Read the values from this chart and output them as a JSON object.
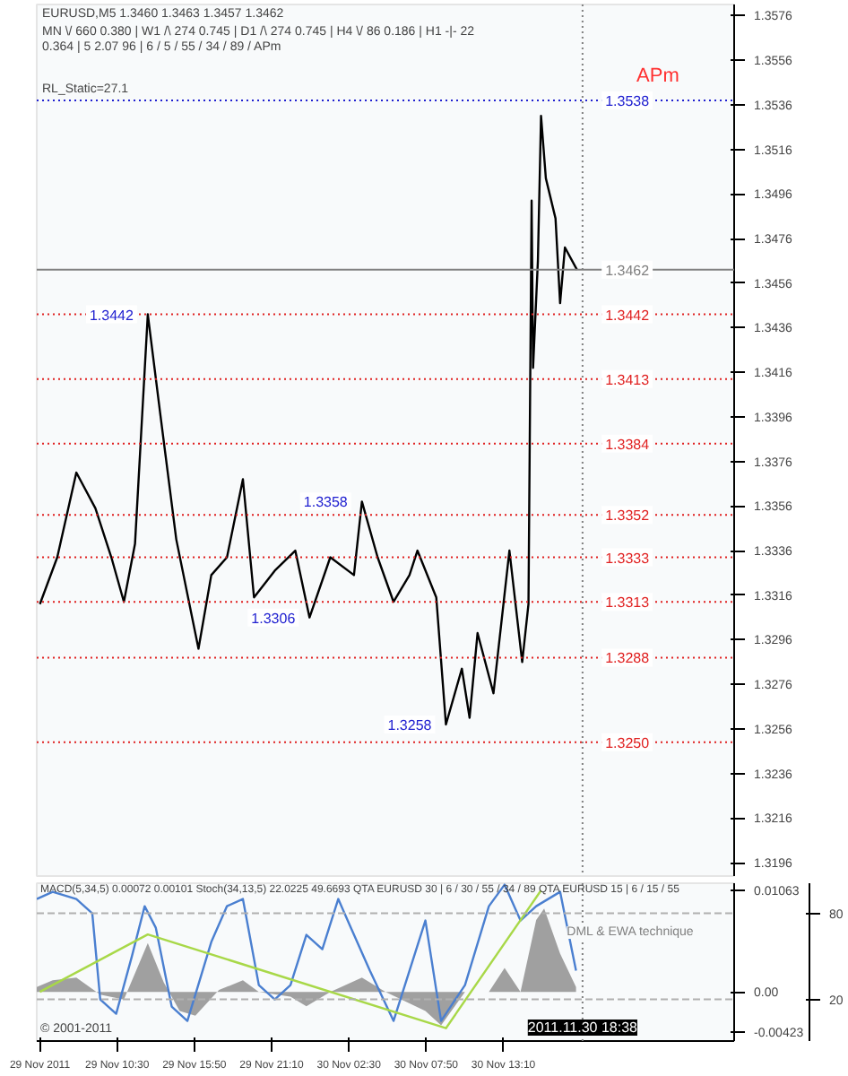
{
  "chart_data": [
    {
      "type": "line",
      "title": "EURUSD,M5  1.3460 1.3463 1.3457 1.3462",
      "subtitle": "MN \\/ 660   0.380 | W1 /\\ 274   0.745 | D1 /\\ 274   0.745 | H4 \\/ 86   0.186 | H1 -|- 22   0.364 | 5  2.07 96 | 6 / 5 / 55 / 34 / 89 / APm",
      "annotations": [
        "RL_Static=27.1",
        "APm",
        {
          "text": "1.3442",
          "x": "2011-11-29T12:37",
          "y": 1.3442
        },
        {
          "text": "1.3358",
          "x": "2011-11-30T03:24",
          "y": 1.3358
        },
        {
          "text": "1.3306",
          "x": "2011-11-29T23:47",
          "y": 1.3306
        },
        {
          "text": "1.3258",
          "x": "2011-11-30T09:12",
          "y": 1.3258
        }
      ],
      "x": [
        "2011-11-29T05:10",
        "2011-11-29T06:22",
        "2011-11-29T07:41",
        "2011-11-29T09:00",
        "2011-11-29T10:06",
        "2011-11-29T10:58",
        "2011-11-29T11:44",
        "2011-11-29T12:37",
        "2011-11-29T13:29",
        "2011-11-29T14:35",
        "2011-11-29T16:07",
        "2011-11-29T17:00",
        "2011-11-29T18:05",
        "2011-11-29T19:11",
        "2011-11-29T19:57",
        "2011-11-29T21:23",
        "2011-11-29T22:48",
        "2011-11-29T23:47",
        "2011-11-30T01:13",
        "2011-11-30T02:51",
        "2011-11-30T03:24",
        "2011-11-30T04:29",
        "2011-11-30T05:35",
        "2011-11-30T06:41",
        "2011-11-30T07:14",
        "2011-11-30T08:32",
        "2011-11-30T09:12",
        "2011-11-30T10:18",
        "2011-11-30T10:50",
        "2011-11-30T11:23",
        "2011-11-30T12:29",
        "2011-11-30T13:35",
        "2011-11-30T14:28",
        "2011-11-30T14:54",
        "2011-11-30T15:07",
        "2011-11-30T15:13",
        "2011-11-30T15:33",
        "2011-11-30T15:46",
        "2011-11-30T16:06",
        "2011-11-30T16:46",
        "2011-11-30T17:05",
        "2011-11-30T17:25",
        "2011-11-30T18:15"
      ],
      "series": [
        {
          "color": "#000000",
          "values": [
            1.3312,
            1.3333,
            1.3371,
            1.3355,
            1.3333,
            1.3313,
            1.3339,
            1.3442,
            1.3397,
            1.3341,
            1.3292,
            1.3325,
            1.3333,
            1.3368,
            1.3315,
            1.3327,
            1.3336,
            1.3306,
            1.3333,
            1.3325,
            1.3358,
            1.3333,
            1.3313,
            1.3325,
            1.3336,
            1.3315,
            1.3258,
            1.3283,
            1.3261,
            1.3299,
            1.3272,
            1.3336,
            1.3286,
            1.3312,
            1.3493,
            1.3418,
            1.3466,
            1.3531,
            1.3503,
            1.3485,
            1.3447,
            1.3472,
            1.3462
          ]
        }
      ],
      "xlim": [
        "2011-11-29T04:57",
        "2011-12-01T05:06"
      ],
      "ylim": [
        1.319,
        1.3581
      ],
      "yticks": [
        1.3196,
        1.3216,
        1.3236,
        1.3256,
        1.3276,
        1.3296,
        1.3316,
        1.3336,
        1.3356,
        1.3376,
        1.3396,
        1.3416,
        1.3436,
        1.3456,
        1.3476,
        1.3496,
        1.3516,
        1.3536,
        1.3556,
        1.3576
      ],
      "xticks": [
        {
          "value": "2011-11-29T05:10",
          "label": null
        },
        {
          "value": "2011-11-29T10:30",
          "label": null
        },
        {
          "value": "2011-11-29T15:50",
          "label": null
        },
        {
          "value": "2011-11-29T21:10",
          "label": null
        },
        {
          "value": "2011-11-30T02:30",
          "label": null
        },
        {
          "value": "2011-11-30T07:50",
          "label": null
        },
        {
          "value": "2011-11-30T13:10",
          "label": null
        },
        {
          "value": "2011-11-30T18:30",
          "label": null
        }
      ],
      "tick_labels": "y",
      "ref_lines": [
        {
          "axis": "y",
          "value": 1.3538,
          "label": "1.3538",
          "color": "#2020d0",
          "line_style": "dotted"
        },
        {
          "axis": "y",
          "value": 1.3462,
          "label": "1.3462",
          "color": "#808080",
          "line_style": "solid"
        },
        {
          "axis": "y",
          "value": 1.3442,
          "label": "1.3442",
          "color": "#e02020",
          "line_style": "dotted"
        },
        {
          "axis": "y",
          "value": 1.3413,
          "label": "1.3413",
          "color": "#e02020",
          "line_style": "dotted"
        },
        {
          "axis": "y",
          "value": 1.3384,
          "label": "1.3384",
          "color": "#e02020",
          "line_style": "dotted"
        },
        {
          "axis": "y",
          "value": 1.3352,
          "label": "1.3352",
          "color": "#e02020",
          "line_style": "dotted"
        },
        {
          "axis": "y",
          "value": 1.3333,
          "label": "1.3333",
          "color": "#e02020",
          "line_style": "dotted"
        },
        {
          "axis": "y",
          "value": 1.3313,
          "label": "1.3313",
          "color": "#e02020",
          "line_style": "dotted"
        },
        {
          "axis": "y",
          "value": 1.3288,
          "label": "1.3288",
          "color": "#e02020",
          "line_style": "dotted"
        },
        {
          "axis": "y",
          "value": 1.325,
          "label": "1.3250",
          "color": "#e02020",
          "line_style": "dotted"
        },
        {
          "axis": "x",
          "value": "2011-11-30T18:38",
          "color": "#808080",
          "line_style": "dotted"
        }
      ],
      "grid": false
    },
    {
      "type": "area",
      "annotations": [
        "MACD(5,34,5) 0.00072 0.00101  Stoch(34,13,5) 22.0225 49.6693  QTA EURUSD 30 | 6 / 30 / 55 / 34 / 89  QTA EURUSD 15 | 6 / 15 / 55",
        "DML & EWA technique",
        "© 2001-2011"
      ],
      "series": [
        {
          "type": "area",
          "color": "#a0a0a0",
          "x": [
            "2011-11-29T04:57",
            "2011-11-29T06:03",
            "2011-11-29T07:41",
            "2011-11-29T09:20",
            "2011-11-29T10:58",
            "2011-11-29T12:37",
            "2011-11-29T13:43",
            "2011-11-29T14:49",
            "2011-11-29T15:54",
            "2011-11-29T17:32",
            "2011-11-29T19:11",
            "2011-11-29T20:17",
            "2011-11-29T22:28",
            "2011-11-29T23:34",
            "2011-11-30T01:13",
            "2011-11-30T03:24",
            "2011-11-30T05:02",
            "2011-11-30T07:47",
            "2011-11-30T08:52",
            "2011-11-30T10:31",
            "2011-11-30T12:10",
            "2011-11-30T13:15",
            "2011-11-30T14:21",
            "2011-11-30T15:26",
            "2011-11-30T15:59",
            "2011-11-30T17:05",
            "2011-11-30T18:11"
          ],
          "values": [
            0.0005,
            0.0012,
            0.0015,
            -0.0003,
            -0.0008,
            0.0051,
            0.001,
            -0.002,
            -0.0025,
            0.0002,
            0.0012,
            0,
            -0.0005,
            -0.0015,
            0,
            0.0015,
            0,
            -0.002,
            -0.0035,
            0,
            0,
            0.0025,
            0,
            0.0075,
            0.0087,
            0.004,
            0.0005
          ]
        },
        {
          "type": "line",
          "color": "#4a7fd0",
          "axis": "y2",
          "x": [
            "2011-11-29T04:57",
            "2011-11-29T06:03",
            "2011-11-29T07:41",
            "2011-11-29T08:47",
            "2011-11-29T09:20",
            "2011-11-29T10:26",
            "2011-11-29T11:31",
            "2011-11-29T12:24",
            "2011-11-29T13:10",
            "2011-11-29T14:16",
            "2011-11-29T15:21",
            "2011-11-29T17:00",
            "2011-11-29T18:05",
            "2011-11-29T19:11",
            "2011-11-29T20:17",
            "2011-11-29T21:23",
            "2011-11-29T22:28",
            "2011-11-29T23:34",
            "2011-11-30T00:40",
            "2011-11-30T01:46",
            "2011-11-30T02:38",
            "2011-11-30T03:57",
            "2011-11-30T05:35",
            "2011-11-30T06:41",
            "2011-11-30T07:47",
            "2011-11-30T08:52",
            "2011-11-30T10:31",
            "2011-11-30T12:10",
            "2011-11-30T13:15",
            "2011-11-30T14:21",
            "2011-11-30T15:26",
            "2011-11-30T17:05",
            "2011-11-30T18:11"
          ],
          "values": [
            90,
            95,
            90,
            80,
            20,
            10,
            50,
            85,
            70,
            15,
            5,
            60,
            85,
            90,
            30,
            20,
            30,
            65,
            55,
            90,
            70,
            40,
            5,
            40,
            75,
            5,
            30,
            85,
            100,
            75,
            85,
            95,
            40
          ]
        },
        {
          "type": "line",
          "color": "#a8d848",
          "x": [
            "2011-11-29T05:10",
            "2011-11-29T12:37",
            "2011-11-30T09:12",
            "2011-11-30T15:46"
          ],
          "values": [
            0,
            0.006,
            -0.0038,
            0.0106
          ]
        }
      ],
      "xlim": [
        "2011-11-29T04:57",
        "2011-12-01T05:06"
      ],
      "ylim": [
        -0.00514,
        0.01135
      ],
      "yticks": [
        -0.00423,
        {
          "value": 0,
          "label": "0.00"
        },
        0.01063
      ],
      "y2lim": [
        -9,
        101
      ],
      "y2ticks": [
        20,
        80
      ],
      "xticks": [
        {
          "value": "2011-11-29T05:10",
          "label": "29 Nov 2011"
        },
        {
          "value": "2011-11-29T10:30",
          "label": "29 Nov 10:30"
        },
        {
          "value": "2011-11-29T15:50",
          "label": "29 Nov 15:50"
        },
        {
          "value": "2011-11-29T21:10",
          "label": "29 Nov 21:10"
        },
        {
          "value": "2011-11-30T02:30",
          "label": "30 Nov 02:30"
        },
        {
          "value": "2011-11-30T07:50",
          "label": "30 Nov 07:50"
        },
        {
          "value": "2011-11-30T13:10",
          "label": "30 Nov 13:10"
        }
      ],
      "ref_lines": [
        {
          "axis": "y2",
          "value": 80,
          "color": "#b0b0b0",
          "line_style": "dashed"
        },
        {
          "axis": "y2",
          "value": 20,
          "color": "#b0b0b0",
          "line_style": "dashed"
        },
        {
          "axis": "x",
          "value": "2011-11-30T18:38",
          "label": "2011.11.30 18:38",
          "color": "#808080",
          "line_style": "dotted"
        }
      ],
      "grid": false
    }
  ]
}
